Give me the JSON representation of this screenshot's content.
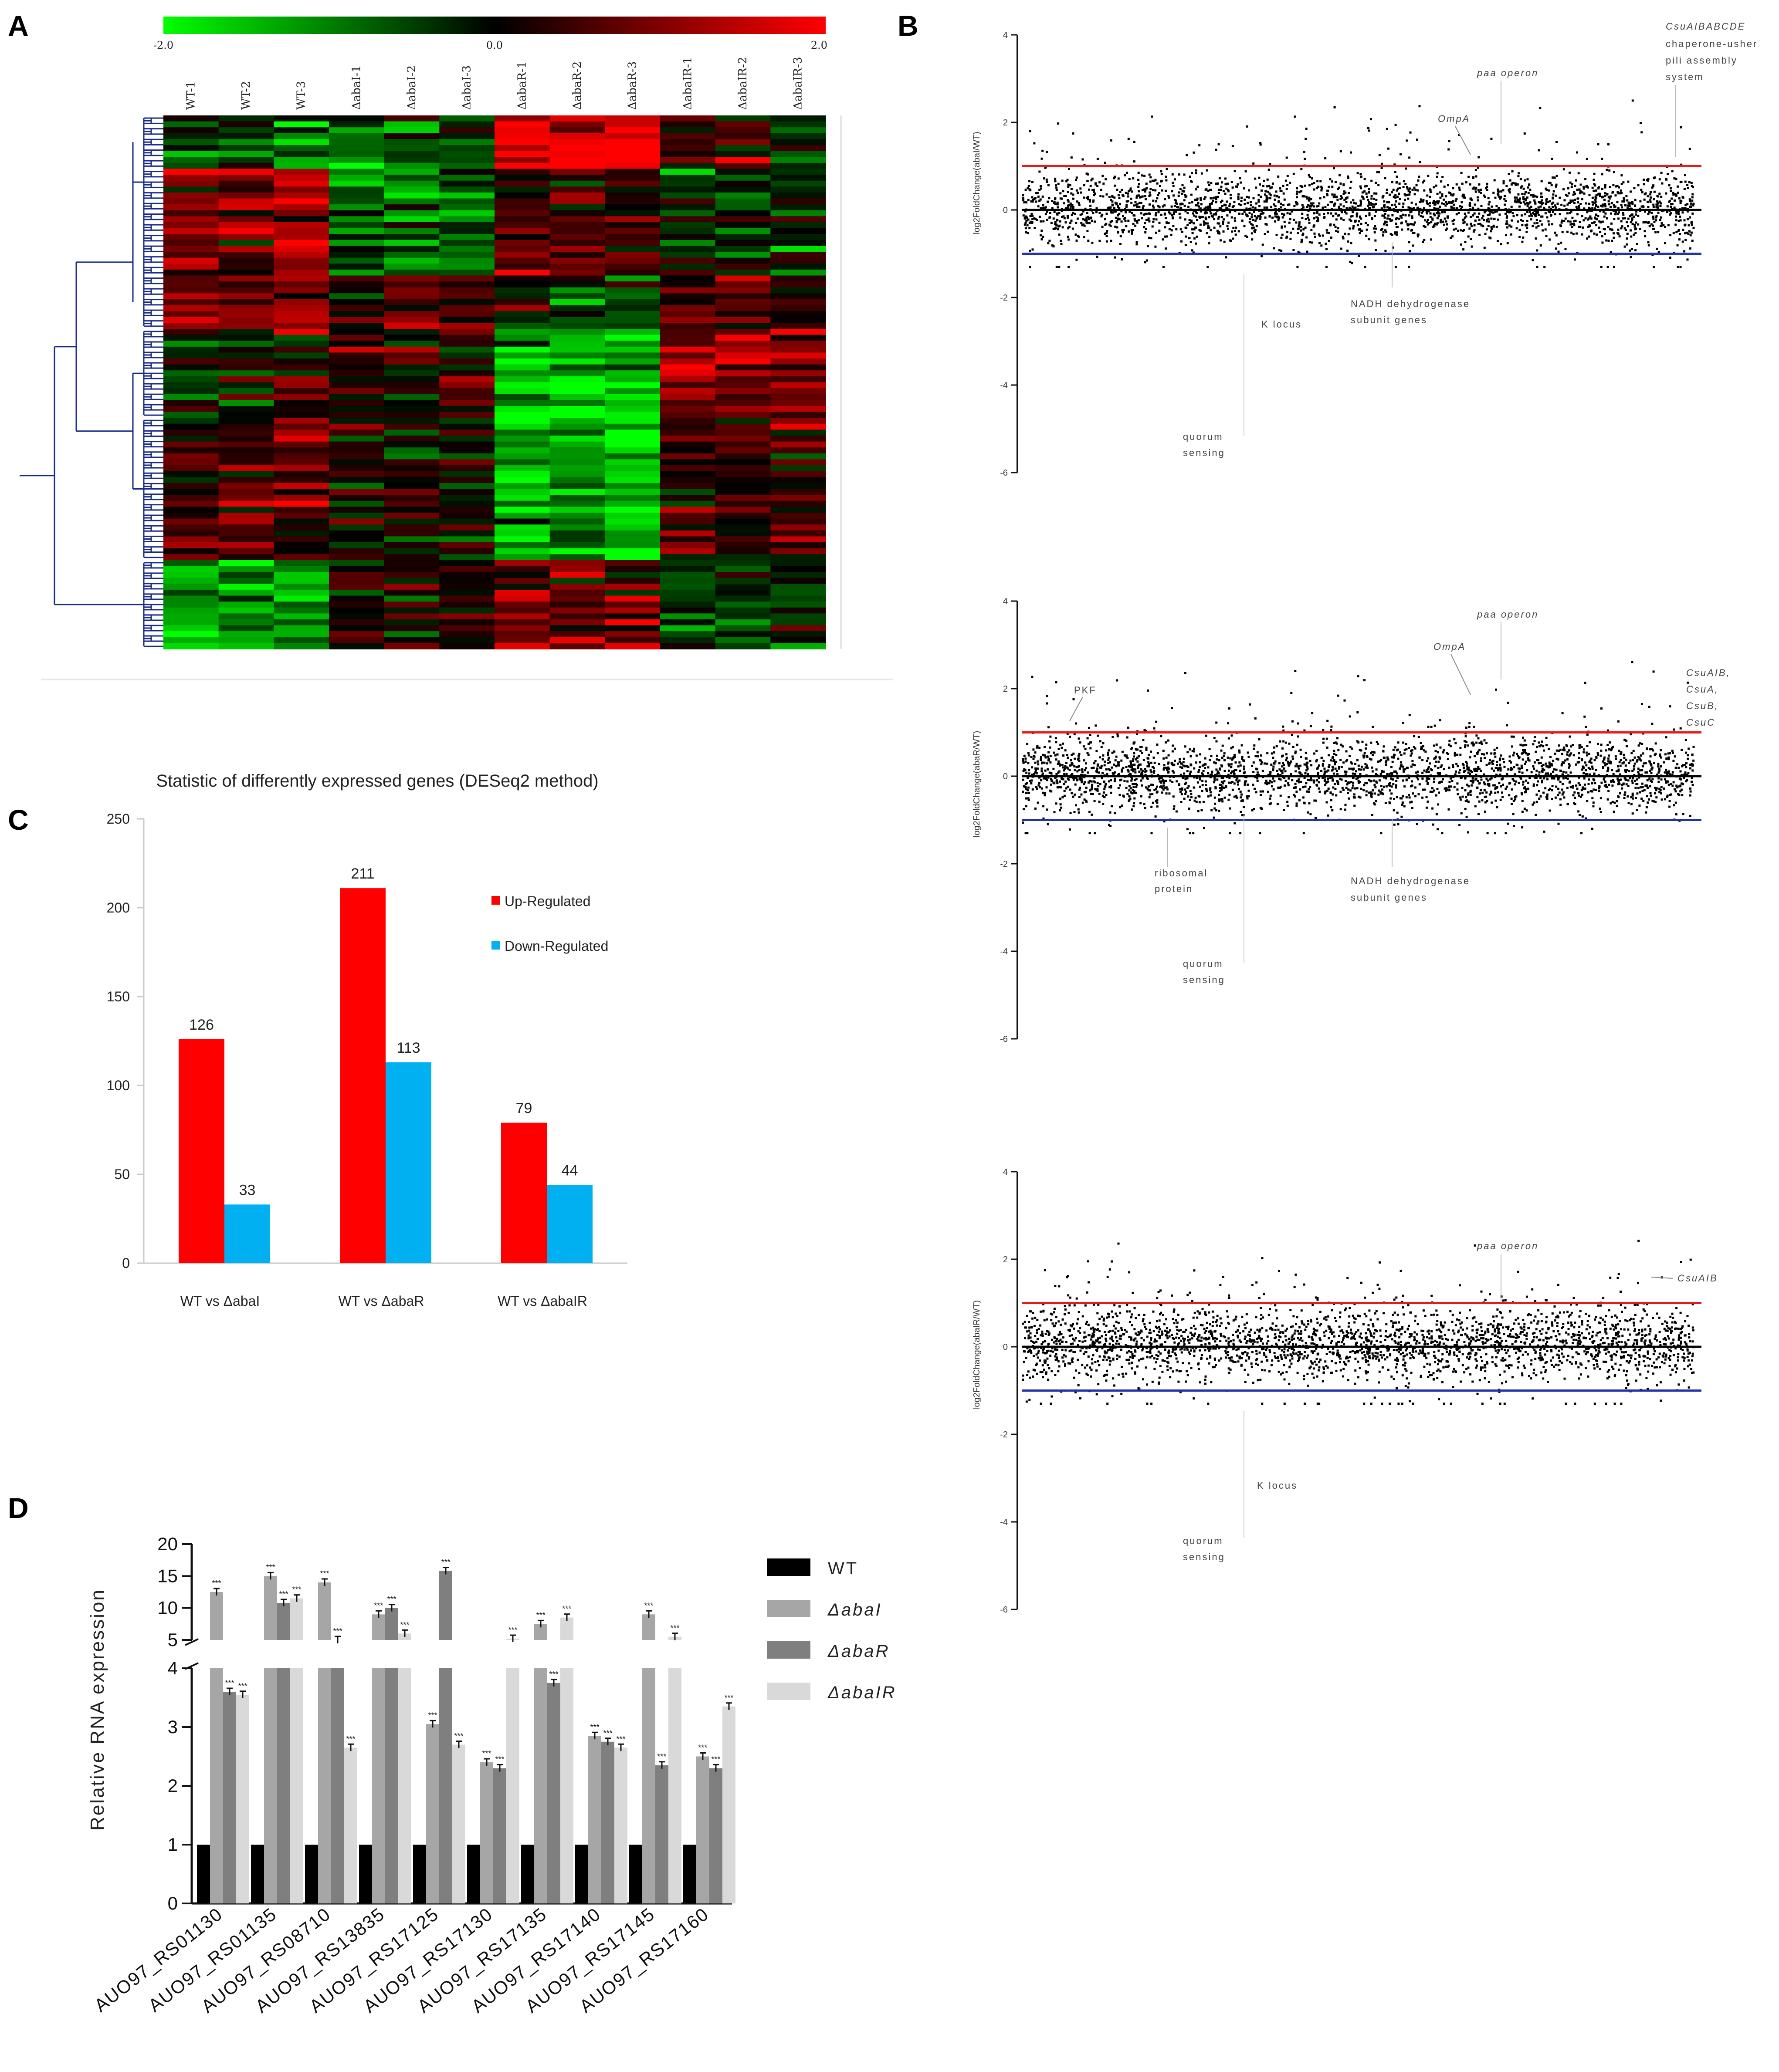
{
  "panels": {
    "a": "A",
    "b": "B",
    "c": "C",
    "d": "D"
  },
  "colors": {
    "red": "#ff0000",
    "green": "#00ff00",
    "blue": "#00b0f0",
    "black": "#000000",
    "wt": "#000000",
    "abaI": "#a6a6a6",
    "abaR": "#7f7f7f",
    "abaIR": "#d9d9d9",
    "upline": "#e41a1c",
    "downline": "#2233aa"
  },
  "chart_data": [
    {
      "type": "heatmap",
      "colorbar": {
        "min": -2.0,
        "mid": 0.0,
        "max": 2.0,
        "min_label": "-2.0",
        "mid_label": "0.0",
        "max_label": "2.0",
        "low_color": "#00ff00",
        "mid_color": "#000000",
        "high_color": "#ff0000"
      },
      "columns": [
        "WT-1",
        "WT-2",
        "WT-3",
        "ΔabaI-1",
        "ΔabaI-2",
        "ΔabaI-3",
        "ΔabaR-1",
        "ΔabaR-2",
        "ΔabaR-3",
        "ΔabaIR-1",
        "ΔabaIR-2",
        "ΔabaIR-3"
      ],
      "row_clusters": [
        {
          "size": 9,
          "values": [
            -0.6,
            -0.8,
            -0.9,
            -0.8,
            -0.7,
            -0.6,
            1.8,
            1.7,
            1.9,
            0.4,
            0.3,
            -0.2
          ]
        },
        {
          "size": 18,
          "values": [
            1.0,
            1.0,
            1.1,
            -0.9,
            -0.8,
            -0.8,
            0.6,
            0.4,
            0.6,
            -0.2,
            -0.4,
            -0.3
          ]
        },
        {
          "size": 9,
          "values": [
            0.9,
            1.0,
            1.0,
            0.2,
            0.7,
            0.4,
            -0.4,
            -0.5,
            -0.2,
            0.7,
            0.4,
            0.3
          ]
        },
        {
          "size": 15,
          "values": [
            -0.2,
            0.0,
            0.2,
            0.4,
            0.2,
            0.1,
            -1.5,
            -1.6,
            -1.4,
            1.1,
            1.0,
            0.9
          ]
        },
        {
          "size": 24,
          "values": [
            0.4,
            0.6,
            0.6,
            0.1,
            0.2,
            0.1,
            -1.1,
            -1.1,
            -1.3,
            0.5,
            0.4,
            0.5
          ]
        },
        {
          "size": 15,
          "values": [
            -1.4,
            -1.3,
            -1.2,
            0.3,
            0.4,
            0.3,
            0.8,
            0.9,
            0.7,
            -0.6,
            -0.5,
            -0.4
          ]
        }
      ]
    },
    {
      "type": "bar",
      "title": "Statistic of differently expressed genes (DESeq2 method)",
      "categories": [
        "WT vs ΔabaI",
        "WT vs ΔabaR",
        "WT vs ΔabaIR"
      ],
      "series": [
        {
          "name": "Up-Regulated",
          "values": [
            126,
            211,
            79
          ]
        },
        {
          "name": "Down-Regulated",
          "values": [
            33,
            113,
            44
          ]
        }
      ],
      "ylim": [
        0,
        250
      ],
      "yticks": [
        "0",
        "50",
        "100",
        "150",
        "200",
        "250"
      ],
      "value_labels": [
        [
          "126",
          "211",
          "79"
        ],
        [
          "33",
          "113",
          "44"
        ]
      ],
      "legend": "right"
    },
    {
      "type": "scatter",
      "panel": "B",
      "ylabel": "log2FoldChange(abaI/WT)",
      "ylim": [
        -6,
        4
      ],
      "yticks": [
        "4",
        "2",
        "0",
        "-2",
        "-4",
        "-6"
      ],
      "thresholds": [
        1,
        0,
        -1
      ],
      "n_points": 2600,
      "seed": 11,
      "annotations": [
        "paa operon",
        "OmpA",
        "K locus",
        "NADH dehydrogenase",
        "subunit genes",
        "quorum",
        "sensing",
        "CsuAIBABCDE",
        "chaperone-usher",
        "pili assembly",
        "system"
      ]
    },
    {
      "type": "scatter",
      "panel": "B",
      "ylabel": "log2FoldChange(abaR/WT)",
      "ylim": [
        -6,
        4
      ],
      "yticks": [
        "4",
        "2",
        "0",
        "-2",
        "-4",
        "-6"
      ],
      "thresholds": [
        1,
        0,
        -1
      ],
      "n_points": 2600,
      "seed": 23,
      "annotations": [
        "paa operon",
        "OmpA",
        "PKF",
        "CsuAIB,",
        "CsuA,",
        "CsuB,",
        "CsuC",
        "ribosomal",
        "protein",
        "NADH dehydrogenase",
        "subunit genes",
        "quorum",
        "sensing"
      ]
    },
    {
      "type": "scatter",
      "panel": "B",
      "ylabel": "log2FoldChange(abaIR/WT)",
      "ylim": [
        -6,
        4
      ],
      "yticks": [
        "4",
        "2",
        "0",
        "-2",
        "-4",
        "-6"
      ],
      "thresholds": [
        1,
        0,
        -1
      ],
      "n_points": 2600,
      "seed": 37,
      "annotations": [
        "paa operon",
        "CsuAIB",
        "K locus",
        "quorum",
        "sensing"
      ]
    },
    {
      "type": "bar",
      "ylabel": "Relative RNA expression",
      "axis_break": [
        4,
        5
      ],
      "ylim_lower": [
        0,
        4
      ],
      "ylim_upper": [
        5,
        20
      ],
      "yticks_lower": [
        "0",
        "1",
        "2",
        "3",
        "4"
      ],
      "yticks_upper": [
        "5",
        "10",
        "15",
        "20"
      ],
      "categories": [
        "AUO97_RS01130",
        "AUO97_RS01135",
        "AUO97_RS08710",
        "AUO97_RS13835",
        "AUO97_RS17125",
        "AUO97_RS17130",
        "AUO97_RS17135",
        "AUO97_RS17140",
        "AUO97_RS17145",
        "AUO97_RS17160"
      ],
      "series": [
        {
          "name": "WT",
          "values": [
            1,
            1,
            1,
            1,
            1,
            1,
            1,
            1,
            1,
            1
          ]
        },
        {
          "name": "ΔabaI",
          "values": [
            12.5,
            15,
            14,
            9,
            3.05,
            2.4,
            7.5,
            2.85,
            9,
            2.5
          ]
        },
        {
          "name": "ΔabaR",
          "values": [
            3.6,
            10.8,
            5,
            10,
            15.8,
            2.3,
            3.75,
            2.75,
            2.35,
            2.3
          ]
        },
        {
          "name": "ΔabaIR",
          "values": [
            3.55,
            11.5,
            2.65,
            6,
            2.7,
            5.2,
            8.5,
            2.65,
            5.5,
            3.35
          ]
        }
      ],
      "significance": "***",
      "legend": "right"
    }
  ]
}
